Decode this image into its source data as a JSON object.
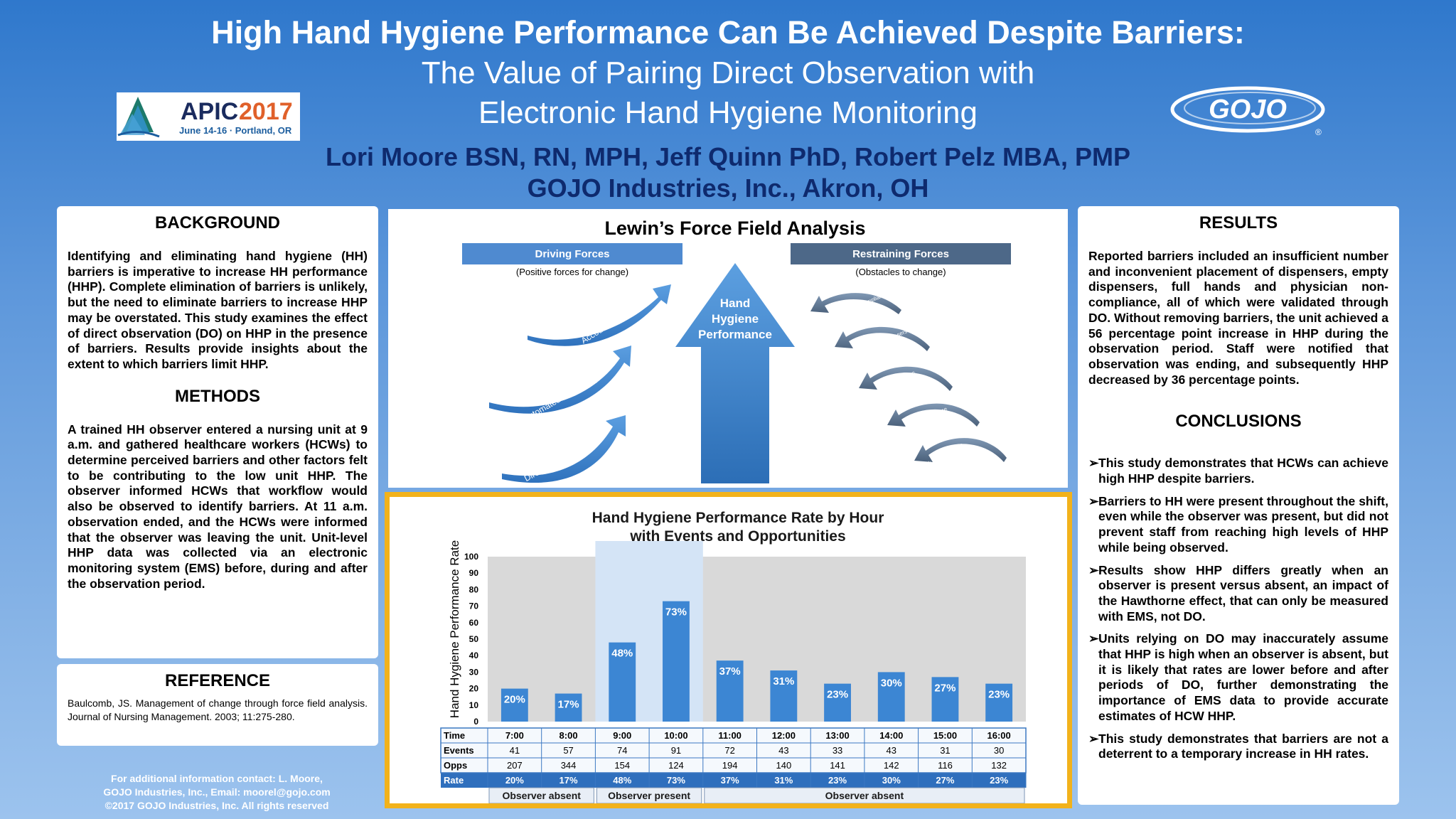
{
  "header": {
    "title_line1": "High Hand Hygiene Performance Can Be Achieved Despite Barriers:",
    "title_line2": "The Value of Pairing Direct Observation with",
    "title_line3": "Electronic Hand Hygiene Monitoring",
    "authors": "Lori Moore BSN, RN, MPH, Jeff Quinn PhD, Robert Pelz MBA, PMP",
    "affiliation": "GOJO Industries, Inc., Akron, OH"
  },
  "logos": {
    "apic_name": "APIC",
    "apic_year": "2017",
    "apic_dates": "June 14-16 · Portland, OR",
    "gojo_name": "GOJO",
    "gojo_mark": "®"
  },
  "background": {
    "heading": "BACKGROUND",
    "text": "Identifying and eliminating hand hygiene (HH) barriers is imperative to increase HH performance (HHP). Complete elimination of barriers is unlikely, but the need to eliminate barriers to increase HHP may be overstated. This study examines the effect of direct observation (DO) on HHP in the presence of barriers. Results provide insights about the extent to which barriers limit HHP."
  },
  "methods": {
    "heading": "METHODS",
    "text": "A trained HH observer entered a nursing unit at 9 a.m. and gathered healthcare workers (HCWs) to determine perceived barriers and other factors felt to be contributing to the low unit HHP. The observer informed HCWs that workflow would also be observed to identify barriers. At 11 a.m. observation ended, and the HCWs were informed that the observer was leaving the unit. Unit-level HHP data was collected via an electronic monitoring system (EMS) before, during and after the observation period."
  },
  "reference": {
    "heading": "REFERENCE",
    "text": "Baulcomb, JS. Management of change through force field analysis. Journal of Nursing Management. 2003; 11:275-280."
  },
  "contact": {
    "line1": "For additional information contact: L. Moore,",
    "line2": "GOJO Industries, Inc., Email: moorel@gojo.com",
    "line3": "©2017 GOJO Industries, Inc. All rights reserved"
  },
  "lewin": {
    "title": "Lewin’s Force Field Analysis",
    "driving_label": "Driving Forces",
    "driving_sub": "(Positive forces for change)",
    "restraining_label": "Restraining Forces",
    "restraining_sub": "(Obstacles to change)",
    "center_line1": "Hand",
    "center_line2": "Hygiene",
    "center_line3": "Performance",
    "driving_items": [
      "Accountability",
      "Automated Monitoring",
      "Direct Observation"
    ],
    "restraining_items": [
      "Physician Non-Compliance",
      "Insufficient Dispensers",
      "Empty Dispensers",
      "EVS Non-Compliance",
      "Lack of Awareness"
    ]
  },
  "results": {
    "heading": "RESULTS",
    "text": "Reported barriers included an insufficient number and inconvenient placement of dispensers, empty dispensers, full hands and physician non-compliance, all of which were validated through DO. Without removing barriers, the unit achieved a 56 percentage point increase in HHP during the observation period. Staff were notified that observation was ending, and subsequently HHP decreased by 36 percentage points."
  },
  "conclusions": {
    "heading": "CONCLUSIONS",
    "arrow": "➢",
    "items": [
      "This study demonstrates that HCWs can achieve high HHP despite barriers.",
      "Barriers to HH were present throughout the shift, even while the observer was present, but did not prevent staff from reaching high levels of HHP while being observed.",
      "Results show HHP differs greatly when an observer is present versus absent, an impact of the Hawthorne effect, that can only be measured with EMS, not DO.",
      "Units relying on DO may inaccurately assume that HHP is high when an observer is absent, but it is likely that rates are lower before and after periods of DO, further demonstrating the importance of EMS data to provide accurate estimates of HCW HHP.",
      "This study demonstrates that barriers are not a deterrent to a temporary increase in HH rates."
    ]
  },
  "chart_data": {
    "type": "bar",
    "title": "Hand Hygiene Performance Rate by Hour",
    "subtitle": "with Events and Opportunities",
    "ylabel": "Hand Hygiene Performance Rate",
    "ylim": [
      0,
      100
    ],
    "yticks": [
      0,
      10,
      20,
      30,
      40,
      50,
      60,
      70,
      80,
      90,
      100
    ],
    "categories": [
      "7:00",
      "8:00",
      "9:00",
      "10:00",
      "11:00",
      "12:00",
      "13:00",
      "14:00",
      "15:00",
      "16:00"
    ],
    "values": [
      20,
      17,
      48,
      73,
      37,
      31,
      23,
      30,
      27,
      23
    ],
    "value_labels": [
      "20%",
      "17%",
      "48%",
      "73%",
      "37%",
      "31%",
      "23%",
      "30%",
      "27%",
      "23%"
    ],
    "table": {
      "row_labels": [
        "Time",
        "Events",
        "Opps",
        "Rate"
      ],
      "events": [
        "41",
        "57",
        "74",
        "91",
        "72",
        "43",
        "33",
        "43",
        "31",
        "30"
      ],
      "opps": [
        "207",
        "344",
        "154",
        "124",
        "194",
        "140",
        "141",
        "142",
        "116",
        "132"
      ],
      "rate": [
        "20%",
        "17%",
        "48%",
        "73%",
        "37%",
        "31%",
        "23%",
        "30%",
        "27%",
        "23%"
      ]
    },
    "groups": [
      {
        "label": "Observer absent",
        "start": 0,
        "end": 1
      },
      {
        "label": "Observer present",
        "start": 2,
        "end": 3
      },
      {
        "label": "Observer absent",
        "start": 4,
        "end": 9
      }
    ],
    "colors": {
      "bar": "#3c86d3",
      "plot_bg": "#d9d9d9",
      "present_bg": "#d4e4f6",
      "frame": "#f2b21b",
      "rate_row": "#2f6fbd"
    }
  }
}
